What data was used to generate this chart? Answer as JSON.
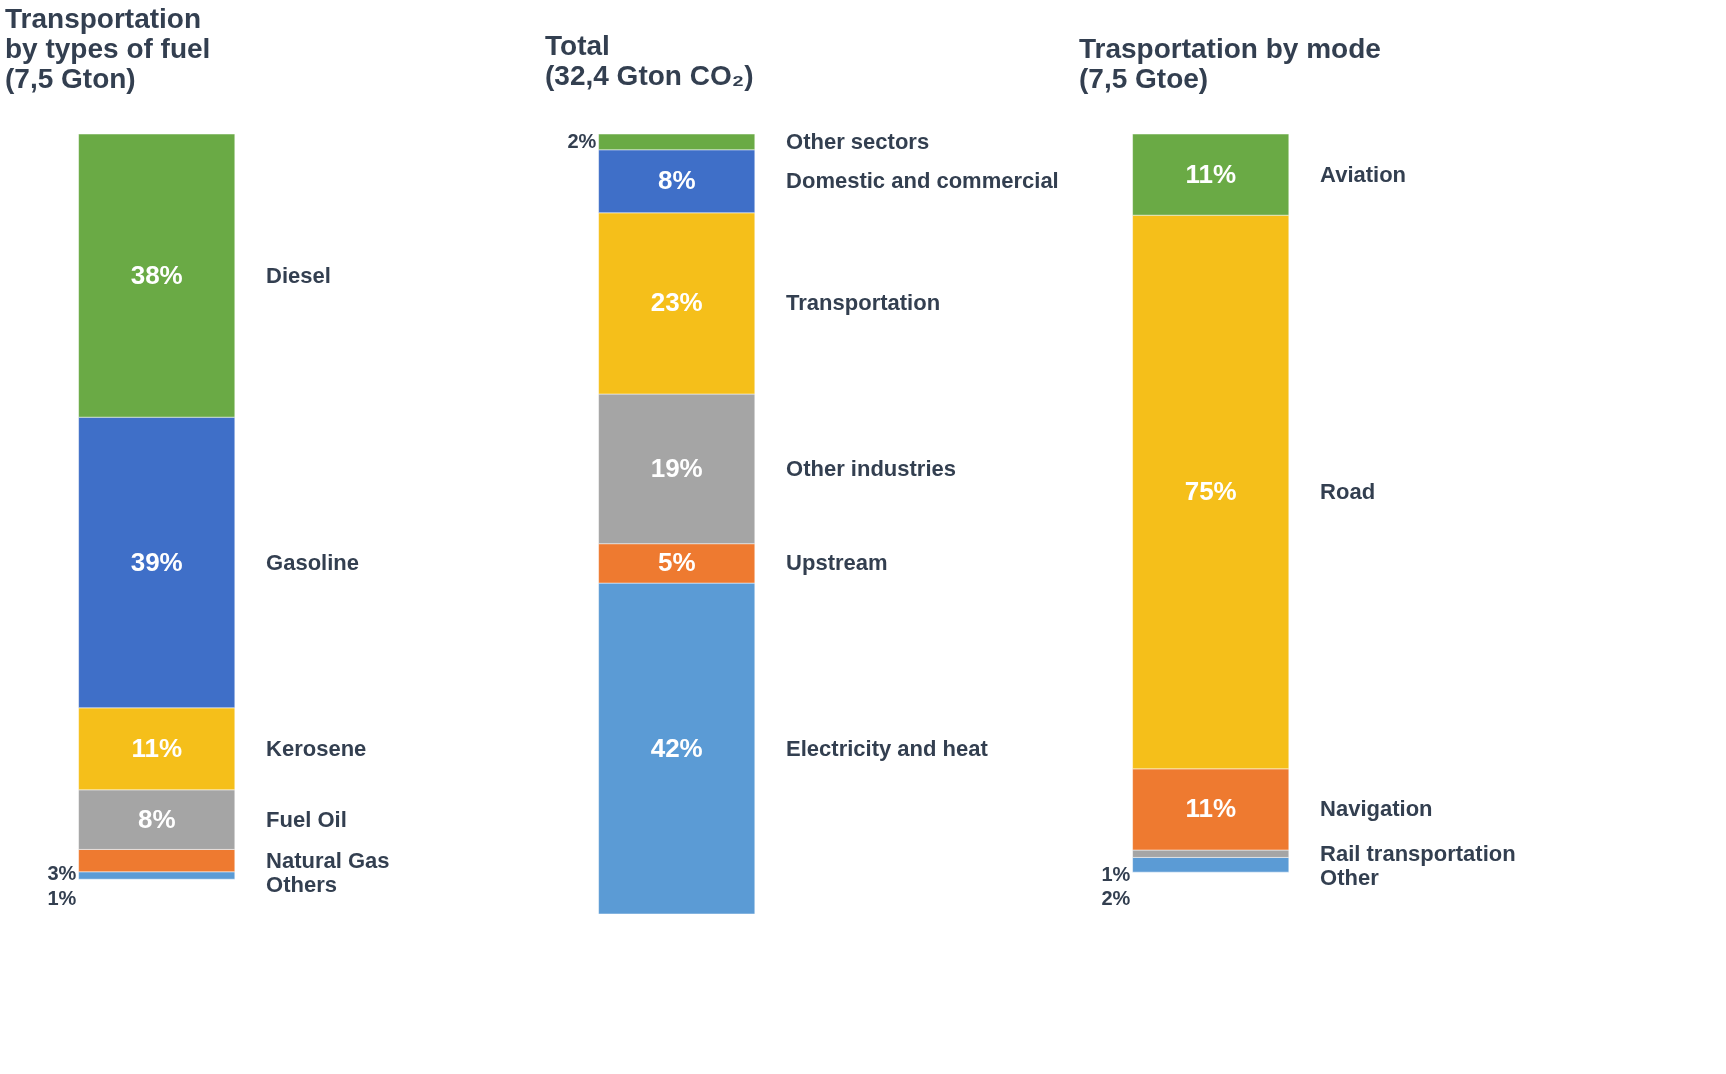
{
  "chart_data": [
    {
      "type": "bar",
      "title": "Transportation\nby types of fuel\n(7,5 Gton)",
      "stacked": true,
      "categories": [
        null
      ],
      "legend": false,
      "tick_labels": false,
      "series": [
        {
          "name": "Others",
          "color": "#5b9bd5",
          "values": [
            1
          ],
          "value_labels": [
            "1%"
          ]
        },
        {
          "name": "Natural Gas",
          "color": "#ee7a30",
          "values": [
            3
          ],
          "value_labels": [
            "3%"
          ]
        },
        {
          "name": "Fuel Oil",
          "color": "#a5a5a5",
          "values": [
            8
          ],
          "value_labels": [
            "8%"
          ]
        },
        {
          "name": "Kerosene",
          "color": "#f5bf1a",
          "values": [
            11
          ],
          "value_labels": [
            "11%"
          ]
        },
        {
          "name": "Gasoline",
          "color": "#3f6fc8",
          "values": [
            39
          ],
          "value_labels": [
            "39%"
          ]
        },
        {
          "name": "Diesel",
          "color": "#6aaa45",
          "values": [
            38
          ],
          "value_labels": [
            "38%"
          ]
        }
      ]
    },
    {
      "type": "bar",
      "title": "Total\n(32,4 Gton CO₂)",
      "stacked": true,
      "categories": [
        null
      ],
      "legend": false,
      "tick_labels": false,
      "series": [
        {
          "name": "Electricity and heat",
          "color": "#5b9bd5",
          "values": [
            42
          ],
          "value_labels": [
            "42%"
          ]
        },
        {
          "name": "Upstream",
          "color": "#ee7a30",
          "values": [
            5
          ],
          "value_labels": [
            "5%"
          ]
        },
        {
          "name": "Other industries",
          "color": "#a5a5a5",
          "values": [
            19
          ],
          "value_labels": [
            "19%"
          ]
        },
        {
          "name": "Transportation",
          "color": "#f5bf1a",
          "values": [
            23
          ],
          "value_labels": [
            "23%"
          ]
        },
        {
          "name": "Domestic and commercial",
          "color": "#3f6fc8",
          "values": [
            8
          ],
          "value_labels": [
            "8%"
          ]
        },
        {
          "name": "Other sectors",
          "color": "#6aaa45",
          "values": [
            2
          ],
          "value_labels": [
            "2%"
          ]
        }
      ]
    },
    {
      "type": "bar",
      "title": "Trasportation by mode\n(7,5 Gtoe)",
      "stacked": true,
      "categories": [
        null
      ],
      "legend": false,
      "tick_labels": false,
      "series": [
        {
          "name": "Other",
          "color": "#5b9bd5",
          "values": [
            2
          ],
          "value_labels": [
            "2%"
          ]
        },
        {
          "name": "Rail transportation",
          "color": "#a5a5a5",
          "values": [
            1
          ],
          "value_labels": [
            "1%"
          ]
        },
        {
          "name": "Navigation",
          "color": "#ee7a30",
          "values": [
            11
          ],
          "value_labels": [
            "11%"
          ]
        },
        {
          "name": "Road",
          "color": "#f5bf1a",
          "values": [
            75
          ],
          "value_labels": [
            "75%"
          ]
        },
        {
          "name": "Aviation",
          "color": "#6aaa45",
          "values": [
            11
          ],
          "value_labels": [
            "11%"
          ]
        }
      ]
    }
  ]
}
